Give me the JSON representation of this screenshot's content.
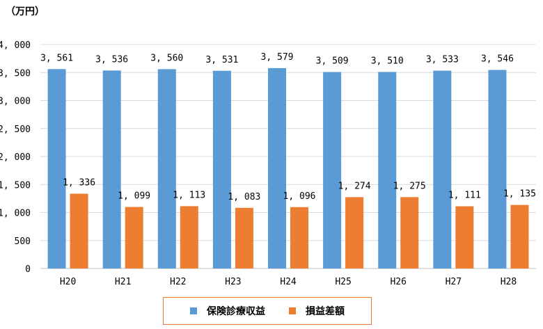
{
  "chart_data": {
    "type": "bar",
    "unit_label": "（万円）",
    "categories": [
      "H20",
      "H21",
      "H22",
      "H23",
      "H24",
      "H25",
      "H26",
      "H27",
      "H28"
    ],
    "series": [
      {
        "name": "保険診療収益",
        "color": "#5B9BD5",
        "values": [
          3561,
          3536,
          3560,
          3531,
          3579,
          3509,
          3510,
          3533,
          3546
        ],
        "labels": [
          "3, 561",
          "3, 536",
          "3, 560",
          "3, 531",
          "3, 579",
          "3, 509",
          "3, 510",
          "3, 533",
          "3, 546"
        ]
      },
      {
        "name": "損益差額",
        "color": "#ED7D31",
        "values": [
          1336,
          1099,
          1113,
          1083,
          1096,
          1274,
          1275,
          1111,
          1135
        ],
        "labels": [
          "1, 336",
          "1, 099",
          "1, 113",
          "1, 083",
          "1, 096",
          "1, 274",
          "1, 275",
          "1, 111",
          "1, 135"
        ]
      }
    ],
    "ylim": [
      0,
      4000
    ],
    "yticks": [
      0,
      500,
      1000,
      1500,
      2000,
      2500,
      3000,
      3500,
      4000
    ],
    "ytick_labels": [
      "0",
      "500",
      "1, 000",
      "1, 500",
      "2, 000",
      "2, 500",
      "3, 000",
      "3, 500",
      "4, 000"
    ],
    "grid": true,
    "legend_position": "bottom"
  }
}
